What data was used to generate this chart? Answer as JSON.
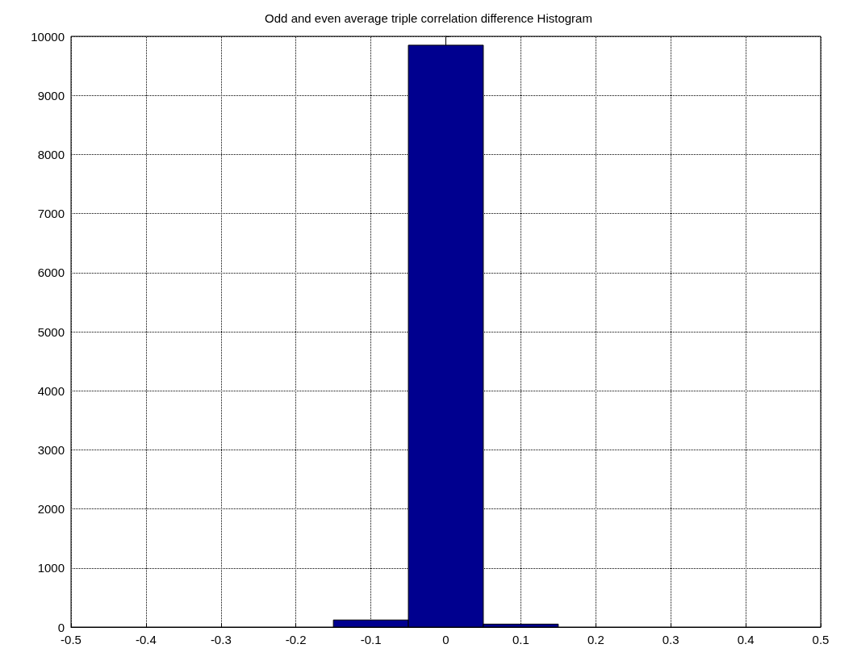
{
  "chart_data": {
    "type": "histogram",
    "title": "Odd and even average triple correlation difference Histogram",
    "bins": [
      -0.15,
      -0.05,
      0.05,
      0.15
    ],
    "values": [
      120,
      9850,
      50
    ],
    "color": "#00008f",
    "xlim": [
      -0.5,
      0.5
    ],
    "xticks": [
      -0.5,
      -0.4,
      -0.3,
      -0.2,
      -0.1,
      0,
      0.1,
      0.2,
      0.3,
      0.4,
      0.5
    ],
    "ylim": [
      0,
      10000
    ],
    "yticks": [
      0,
      1000,
      2000,
      3000,
      4000,
      5000,
      6000,
      7000,
      8000,
      9000,
      10000
    ],
    "grid": true
  }
}
